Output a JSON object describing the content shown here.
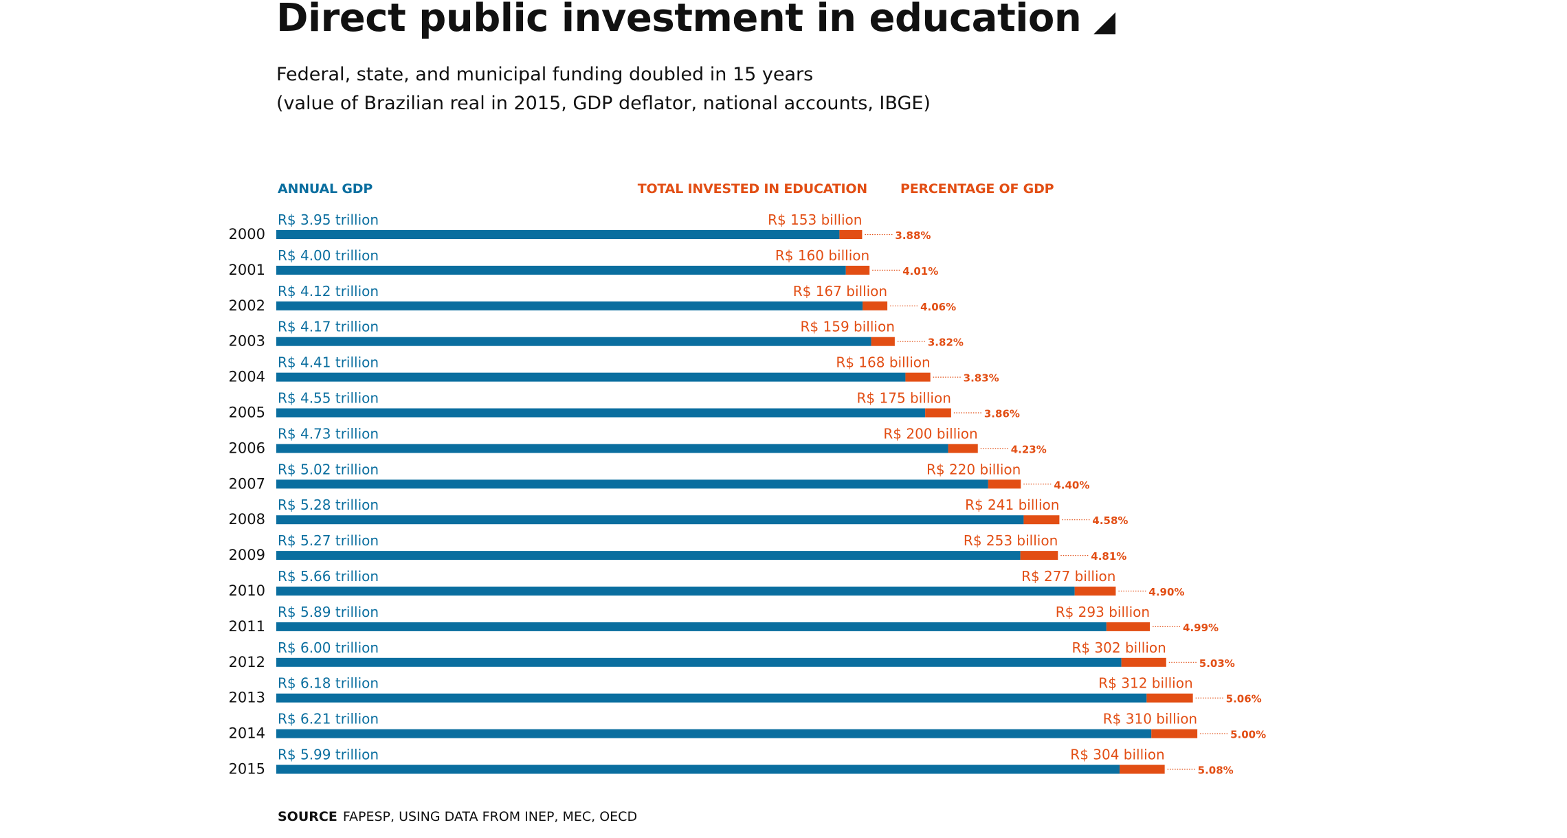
{
  "header": {
    "title": "Direct public investment in education",
    "subtitle_line1": "Federal, state, and municipal funding doubled in 15 years",
    "subtitle_line2": "(value of Brazilian real in 2015, GDP deflator, national accounts, IBGE)"
  },
  "colors": {
    "gdp": "#0a6e9f",
    "education": "#e24e14",
    "text": "#111111"
  },
  "source": {
    "label": "SOURCE",
    "text": "FAPESP, USING DATA FROM INEP, MEC, OECD"
  },
  "chart_data": {
    "type": "bar",
    "orientation": "horizontal",
    "title": "Direct public investment in education",
    "subtitle": "Federal, state, and municipal funding doubled in 15 years (value of Brazilian real in 2015, GDP deflator, national accounts, IBGE)",
    "column_headers": {
      "gdp": "ANNUAL GDP",
      "education": "TOTAL INVESTED IN EDUCATION",
      "percentage": "PERCENTAGE OF GDP"
    },
    "categories": [
      "2000",
      "2001",
      "2002",
      "2003",
      "2004",
      "2005",
      "2006",
      "2007",
      "2008",
      "2009",
      "2010",
      "2011",
      "2012",
      "2013",
      "2014",
      "2015"
    ],
    "series": [
      {
        "name": "Annual GDP",
        "unit": "trillion R$",
        "values": [
          3.95,
          4.0,
          4.12,
          4.17,
          4.41,
          4.55,
          4.73,
          5.02,
          5.28,
          5.27,
          5.66,
          5.89,
          6.0,
          6.18,
          6.21,
          5.99
        ],
        "labels": [
          "R$ 3.95 trillion",
          "R$ 4.00 trillion",
          "R$ 4.12 trillion",
          "R$ 4.17 trillion",
          "R$ 4.41 trillion",
          "R$ 4.55 trillion",
          "R$ 4.73 trillion",
          "R$ 5.02 trillion",
          "R$ 5.28 trillion",
          "R$ 5.27 trillion",
          "R$ 5.66 trillion",
          "R$ 5.89 trillion",
          "R$ 6.00 trillion",
          "R$ 6.18 trillion",
          "R$ 6.21 trillion",
          "R$ 5.99 trillion"
        ]
      },
      {
        "name": "Total invested in education",
        "unit": "billion R$",
        "values": [
          153,
          160,
          167,
          159,
          168,
          175,
          200,
          220,
          241,
          253,
          277,
          293,
          302,
          312,
          310,
          304
        ],
        "labels": [
          "R$ 153 billion",
          "R$ 160 billion",
          "R$ 167 billion",
          "R$ 159 billion",
          "R$ 168 billion",
          "R$ 175 billion",
          "R$ 200 billion",
          "R$ 220 billion",
          "R$ 241 billion",
          "R$ 253 billion",
          "R$ 277 billion",
          "R$ 293 billion",
          "R$ 302 billion",
          "R$ 312 billion",
          "R$ 310 billion",
          "R$ 304 billion"
        ]
      },
      {
        "name": "Percentage of GDP",
        "unit": "%",
        "values": [
          3.88,
          4.01,
          4.06,
          3.82,
          3.83,
          3.86,
          4.23,
          4.4,
          4.58,
          4.81,
          4.9,
          4.99,
          5.03,
          5.06,
          5.0,
          5.08
        ],
        "labels": [
          "3.88%",
          "4.01%",
          "4.06%",
          "3.82%",
          "3.83%",
          "3.86%",
          "4.23%",
          "4.40%",
          "4.58%",
          "4.81%",
          "4.90%",
          "4.99%",
          "5.03%",
          "5.06%",
          "5.00%",
          "5.08%"
        ]
      }
    ],
    "xlabel": "",
    "ylabel": "",
    "grid": false,
    "legend": "top (column headers)"
  }
}
